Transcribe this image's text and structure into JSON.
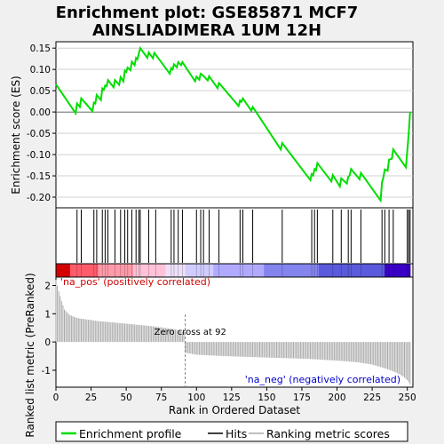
{
  "chart_data": {
    "type": "line",
    "title_line1": "Enrichment plot: GSE85871 MCF7",
    "title_line2": "AINSLIADIMERA 1UM 12H",
    "ylabel_top": "Enrichment score (ES)",
    "ylabel_bottom": "Ranked list metric (PreRanked)",
    "xlabel": "Rank in Dataset",
    "xlabel_full": "Rank in Ordered Dataset",
    "xlim": [
      0,
      254
    ],
    "x_ticks": [
      "0",
      "25",
      "50",
      "75",
      "100",
      "125",
      "150",
      "175",
      "200",
      "225",
      "250"
    ],
    "es_ylim": [
      -0.225,
      0.165
    ],
    "es_ticks": [
      "0.15",
      "0.10",
      "0.05",
      "0.00",
      "-0.05",
      "-0.10",
      "-0.15",
      "-0.20"
    ],
    "metric_ylim": [
      -1.6,
      2.3
    ],
    "metric_ticks": [
      "2",
      "1",
      "0",
      "-1"
    ],
    "pos_label": "'na_pos' (positively correlated)",
    "neg_label": "'na_neg' (negatively correlated)",
    "zero_cross_label": "Zero cross at 92",
    "zero_cross": 92,
    "n_genes": 252,
    "hits": [
      15,
      18,
      27,
      29,
      33,
      35,
      37,
      42,
      46,
      49,
      51,
      54,
      57,
      59,
      60,
      66,
      71,
      82,
      84,
      87,
      90,
      100,
      103,
      105,
      109,
      116,
      131,
      133,
      140,
      161,
      182,
      184,
      186,
      197,
      203,
      208,
      210,
      217,
      232,
      234,
      237,
      240,
      250,
      251,
      252
    ],
    "enrichment_profile": [
      [
        0,
        0.065
      ],
      [
        14,
        -0.003
      ],
      [
        15,
        0.02
      ],
      [
        17,
        0.012
      ],
      [
        18,
        0.032
      ],
      [
        26,
        0.002
      ],
      [
        27,
        0.022
      ],
      [
        28,
        0.02
      ],
      [
        29,
        0.04
      ],
      [
        32,
        0.028
      ],
      [
        33,
        0.055
      ],
      [
        34,
        0.052
      ],
      [
        35,
        0.062
      ],
      [
        36,
        0.06
      ],
      [
        37,
        0.075
      ],
      [
        41,
        0.058
      ],
      [
        42,
        0.075
      ],
      [
        45,
        0.064
      ],
      [
        46,
        0.082
      ],
      [
        48,
        0.072
      ],
      [
        49,
        0.097
      ],
      [
        50,
        0.094
      ],
      [
        51,
        0.104
      ],
      [
        53,
        0.098
      ],
      [
        54,
        0.118
      ],
      [
        56,
        0.11
      ],
      [
        57,
        0.127
      ],
      [
        58,
        0.124
      ],
      [
        59,
        0.138
      ],
      [
        60,
        0.15
      ],
      [
        65,
        0.127
      ],
      [
        66,
        0.14
      ],
      [
        69,
        0.126
      ],
      [
        70,
        0.139
      ],
      [
        81,
        0.09
      ],
      [
        82,
        0.103
      ],
      [
        83,
        0.1
      ],
      [
        84,
        0.112
      ],
      [
        86,
        0.105
      ],
      [
        87,
        0.117
      ],
      [
        89,
        0.11
      ],
      [
        90,
        0.117
      ],
      [
        99,
        0.072
      ],
      [
        100,
        0.083
      ],
      [
        102,
        0.076
      ],
      [
        103,
        0.09
      ],
      [
        104,
        0.088
      ],
      [
        108,
        0.074
      ],
      [
        109,
        0.084
      ],
      [
        115,
        0.056
      ],
      [
        116,
        0.068
      ],
      [
        130,
        0.014
      ],
      [
        131,
        0.027
      ],
      [
        132,
        0.024
      ],
      [
        133,
        0.032
      ],
      [
        139,
        0.003
      ],
      [
        140,
        0.012
      ],
      [
        160,
        -0.088
      ],
      [
        161,
        -0.073
      ],
      [
        181,
        -0.16
      ],
      [
        182,
        -0.146
      ],
      [
        183,
        -0.149
      ],
      [
        184,
        -0.134
      ],
      [
        185,
        -0.137
      ],
      [
        186,
        -0.12
      ],
      [
        196,
        -0.163
      ],
      [
        197,
        -0.148
      ],
      [
        202,
        -0.175
      ],
      [
        203,
        -0.156
      ],
      [
        207,
        -0.168
      ],
      [
        208,
        -0.152
      ],
      [
        209,
        -0.149
      ],
      [
        210,
        -0.134
      ],
      [
        216,
        -0.158
      ],
      [
        217,
        -0.143
      ],
      [
        231,
        -0.208
      ],
      [
        232,
        -0.165
      ],
      [
        233,
        -0.153
      ],
      [
        234,
        -0.135
      ],
      [
        236,
        -0.138
      ],
      [
        237,
        -0.112
      ],
      [
        239,
        -0.11
      ],
      [
        240,
        -0.088
      ],
      [
        249,
        -0.13
      ],
      [
        250,
        -0.09
      ],
      [
        251,
        -0.05
      ],
      [
        252,
        0.0
      ]
    ],
    "metric_curve": [
      [
        0,
        2.2
      ],
      [
        2,
        1.8
      ],
      [
        4,
        1.45
      ],
      [
        6,
        1.15
      ],
      [
        10,
        0.95
      ],
      [
        15,
        0.85
      ],
      [
        30,
        0.74
      ],
      [
        50,
        0.65
      ],
      [
        70,
        0.55
      ],
      [
        85,
        0.45
      ],
      [
        91,
        0.35
      ],
      [
        92,
        -0.38
      ],
      [
        100,
        -0.45
      ],
      [
        120,
        -0.5
      ],
      [
        150,
        -0.55
      ],
      [
        180,
        -0.6
      ],
      [
        200,
        -0.66
      ],
      [
        215,
        -0.72
      ],
      [
        225,
        -0.8
      ],
      [
        232,
        -0.9
      ],
      [
        238,
        -1.0
      ],
      [
        243,
        -1.1
      ],
      [
        247,
        -1.22
      ],
      [
        250,
        -1.35
      ],
      [
        252,
        -1.5
      ]
    ],
    "colors": {
      "profile_line": "#00dd00",
      "hit_line": "#000000",
      "metric_bar": "#aaaaaa",
      "pos_label": "#cc0000",
      "neg_label": "#0000cc",
      "background": "#f0f0f0",
      "panel": "#ffffff"
    },
    "heatmap_stops": [
      "#d40000",
      "#ff5b6b",
      "#ff9aaa",
      "#ffc2d8",
      "#ede0f8",
      "#d0ccff",
      "#b0aaff",
      "#8484ee",
      "#5a5adc",
      "#3a00c8"
    ],
    "heatmap_breaks": [
      0,
      10,
      30,
      55,
      78,
      92,
      112,
      148,
      187,
      234,
      252
    ],
    "legend": [
      "Enrichment profile",
      "Hits",
      "Ranking metric scores"
    ]
  }
}
